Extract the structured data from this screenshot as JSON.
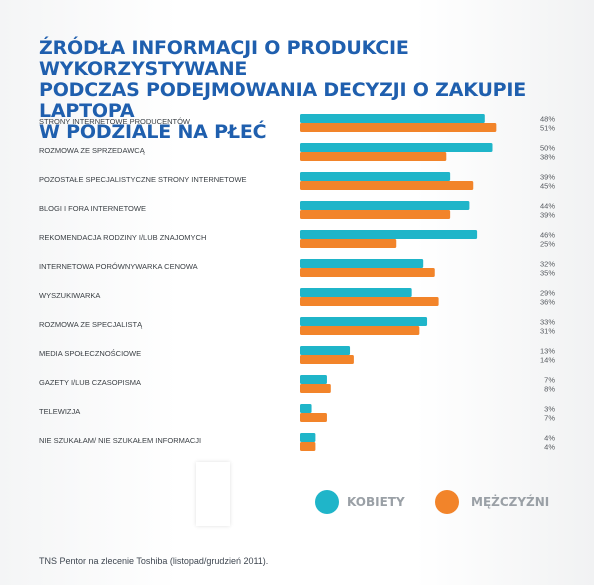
{
  "header": {
    "title_line1": "ŹRÓDŁA INFORMACJI O PRODUKCIE WYKORZYSTYWANE",
    "title_line2": "PODCZAS PODEJMOWANIA DECYZJI O ZAKUPIE LAPTOPA",
    "title_line3": "W PODZIALE NA PŁEĆ"
  },
  "legend": {
    "women_label": "KOBIETY",
    "men_label": "MĘŻCZYŹNI"
  },
  "footer": {
    "source": "TNS Pentor na zlecenie Toshiba (listopad/grudzień 2011)."
  },
  "colors": {
    "women": "#1fb5c9",
    "men": "#f2842a",
    "title": "#1f5fae"
  },
  "chart_data": {
    "type": "bar",
    "orientation": "horizontal",
    "title": "ŹRÓDŁA INFORMACJI O PRODUKCIE WYKORZYSTYWANE PODCZAS PODEJMOWANIA DECYZJI O ZAKUPIE LAPTOPA W PODZIALE NA PŁEĆ",
    "categories": [
      "STRONY INTERNETOWE PRODUCENTÓW",
      "ROZMOWA ZE SPRZEDAWCĄ",
      "POZOSTAŁE SPECJALISTYCZNE STRONY INTERNETOWE",
      "BLOGI I FORA INTERNETOWE",
      "REKOMENDACJA RODZINY I/LUB ZNAJOMYCH",
      "INTERNETOWA PORÓWNYWARKA CENOWA",
      "WYSZUKIWARKA",
      "ROZMOWA ZE SPECJALISTĄ",
      "MEDIA SPOŁECZNOŚCIOWE",
      "GAZETY I/LUB CZASOPISMA",
      "TELEWIZJA",
      "NIE SZUKAŁAM/ NIE SZUKAŁEM INFORMACJI"
    ],
    "series": [
      {
        "name": "KOBIETY",
        "values": [
          48,
          50,
          39,
          44,
          46,
          32,
          29,
          33,
          13,
          7,
          3,
          4
        ]
      },
      {
        "name": "MĘŻCZYŹNI",
        "values": [
          51,
          38,
          45,
          39,
          25,
          35,
          36,
          31,
          14,
          8,
          7,
          4
        ]
      }
    ],
    "unit": "%",
    "xlim": [
      0,
      51
    ],
    "grid": false,
    "legend_position": "bottom"
  }
}
